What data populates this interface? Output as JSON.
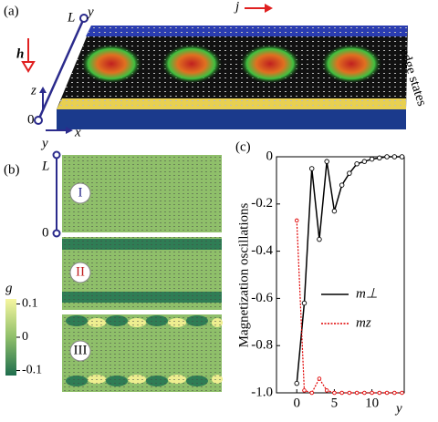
{
  "panel_a": {
    "label": "(a)",
    "current": "j",
    "field": "h",
    "axis_top": "L",
    "axis_y": "y",
    "axis_z": "z",
    "origin": "0",
    "axis_x": "x",
    "edge_label": "edge states"
  },
  "panel_b": {
    "label": "(b)",
    "axis_y": "y",
    "axis_top": "L",
    "origin": "0",
    "regions": [
      "I",
      "II",
      "III"
    ],
    "colorbar": {
      "label": "g",
      "lim": [
        -0.115,
        0.115
      ],
      "ticks": [
        0.1,
        0,
        -0.1
      ]
    }
  },
  "chart_data": {
    "type": "line",
    "panel_label": "(c)",
    "y_label": "Magnetization oscillations",
    "x_label": "y",
    "x": [
      0,
      1,
      2,
      3,
      4,
      5,
      6,
      7,
      8,
      9,
      10,
      11,
      12,
      13,
      14
    ],
    "series": [
      {
        "name": "m⊥",
        "color": "#000000",
        "values": [
          -0.96,
          -0.62,
          -0.05,
          -0.35,
          -0.02,
          -0.23,
          -0.12,
          -0.07,
          -0.03,
          -0.02,
          -0.01,
          -0.005,
          0,
          0,
          0
        ]
      },
      {
        "name": "mz",
        "color": "#e00000",
        "values": [
          -0.27,
          -0.99,
          -1.0,
          -0.94,
          -0.99,
          -1.0,
          -1.0,
          -1.0,
          -1.0,
          -1.0,
          -1.0,
          -1.0,
          -1.0,
          -1.0,
          -1.0
        ]
      }
    ],
    "xlim": [
      -2.7,
      14.3
    ],
    "ylim": [
      -1,
      0
    ],
    "xticks": [
      0,
      5,
      10
    ],
    "yticks": [
      0,
      -0.2,
      -0.4,
      -0.6,
      -0.8,
      {
        "value": -1,
        "label": "-1.0"
      }
    ]
  }
}
